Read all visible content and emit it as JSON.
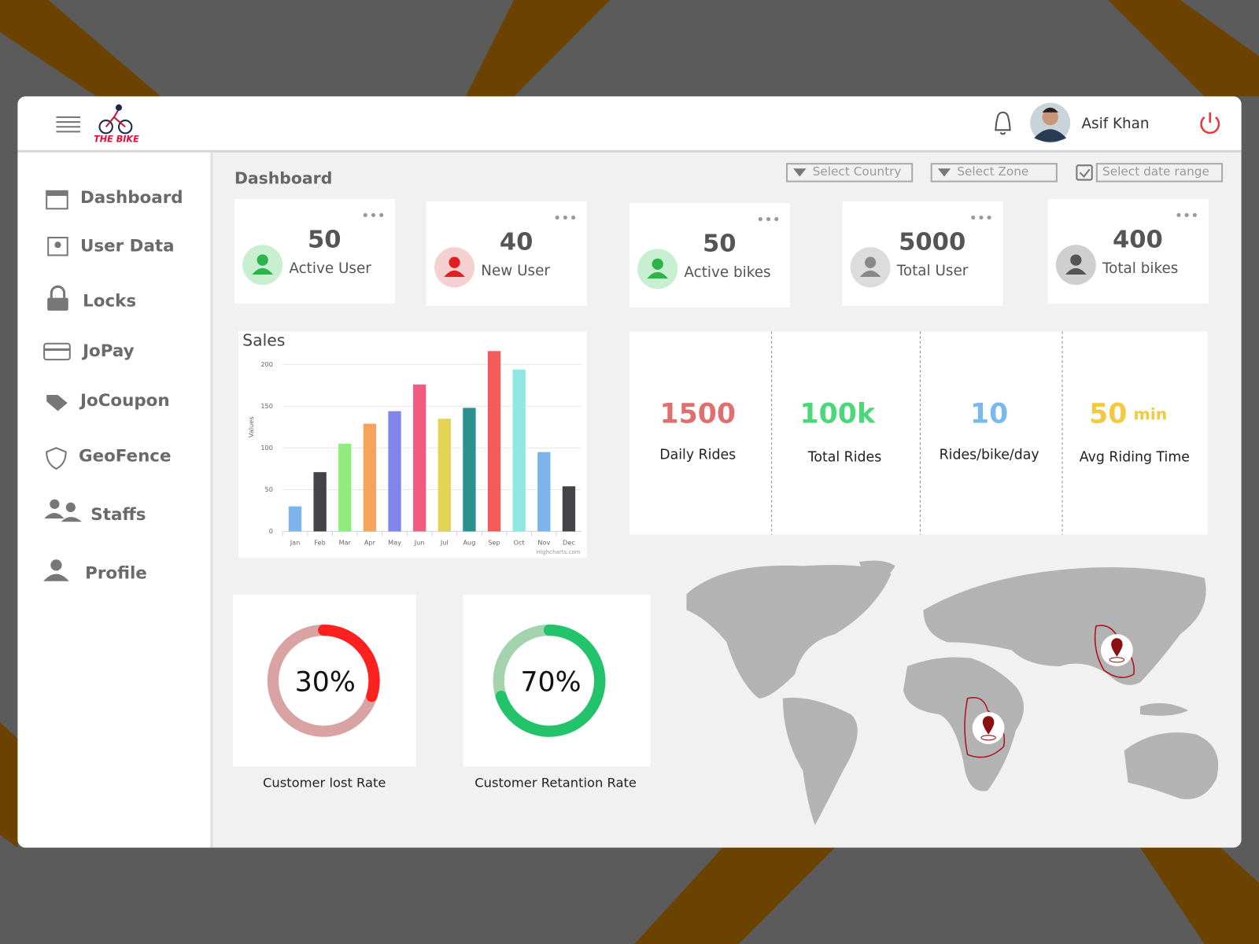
{
  "header": {
    "logo": "THE BIKE",
    "user_name": "Asif Khan"
  },
  "sidebar": [
    "Dashboard",
    "User Data",
    "Locks",
    "JoPay",
    "JoCoupon",
    "GeoFence",
    "Staffs",
    "Profile"
  ],
  "page_title": "Dashboard",
  "filters": [
    "Select Country",
    "Select Zone",
    "Select date range"
  ],
  "cards": [
    {
      "value": 50,
      "label": "Active User"
    },
    {
      "value": 40,
      "label": "New User"
    },
    {
      "value": 50,
      "label": "Active bikes"
    },
    {
      "value": 5000,
      "label": "Total User"
    },
    {
      "value": 400,
      "label": "Total bikes"
    }
  ],
  "chart_data": {
    "type": "bar",
    "title": "Sales",
    "y_label": "Values",
    "credit": "Highcharts.com",
    "categories": [
      "Jan",
      "Feb",
      "Mar",
      "Apr",
      "May",
      "Jun",
      "Jul",
      "Aug",
      "Sep",
      "Oct",
      "Nov",
      "Dec"
    ],
    "values": [
      30,
      71,
      105,
      129,
      144,
      176,
      135,
      148,
      216,
      194,
      95,
      54
    ],
    "colors": [
      "#7cb5ec",
      "#434348",
      "#90ed7d",
      "#f7a35c",
      "#8085e9",
      "#f15c80",
      "#e4d354",
      "#2b908f",
      "#f45b5b",
      "#91e8e1",
      "#7cb5ec",
      "#434348"
    ],
    "ylim": [
      0,
      220
    ],
    "yticks": [
      0,
      50,
      100,
      150,
      200
    ],
    "grid": true
  },
  "metrics": [
    {
      "value": "1500",
      "label": "Daily Rides",
      "color": "#e07070"
    },
    {
      "value": "100k",
      "label": "Total Rides",
      "color": "#4cd87a"
    },
    {
      "value": "10",
      "label": "Rides/bike/day",
      "color": "#7ab8f0"
    },
    {
      "value": "50",
      "unit": "min",
      "label": "Avg Riding Time",
      "color": "#f5c842"
    }
  ],
  "gauges": [
    {
      "value": 30,
      "value_label": "30%",
      "label": "Customer lost Rate",
      "color": "#ff2020",
      "track": "#d9a3a3"
    },
    {
      "value": 70,
      "value_label": "70%",
      "label": "Customer Retantion Rate",
      "color": "#22c36a",
      "track": "#a3d4ad"
    }
  ]
}
